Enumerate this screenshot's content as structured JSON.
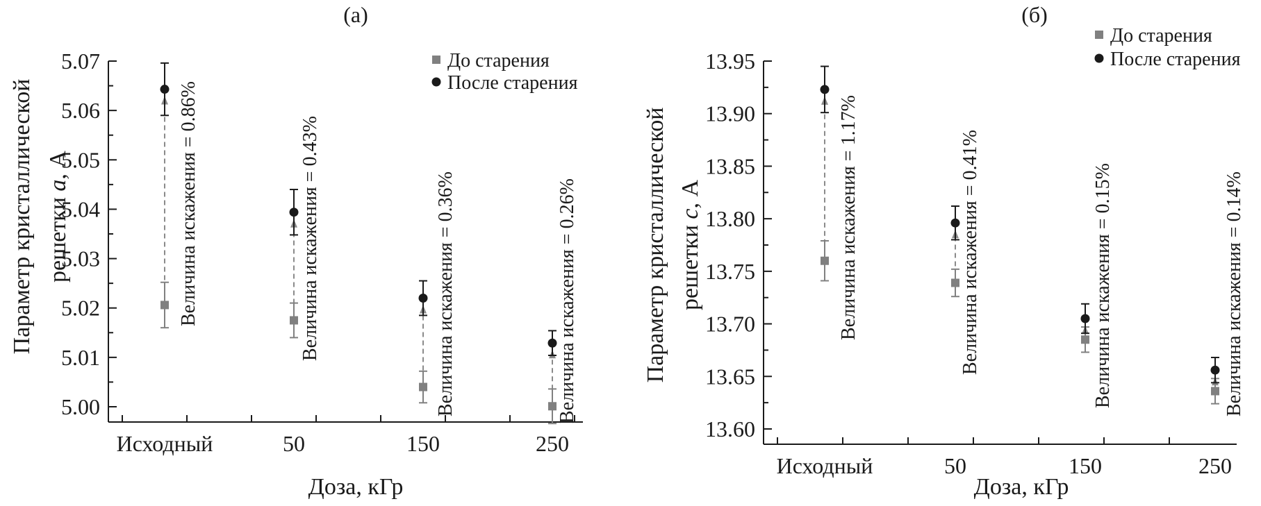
{
  "chart_data": [
    {
      "type": "scatter",
      "panel_label": "(а)",
      "xlabel": "Доза, кГр",
      "ylabel_line1": "Параметр кристаллической",
      "ylabel_line2_pre": "решетки ",
      "ylabel_line2_var": "a",
      "ylabel_line2_post": ", А",
      "categories": [
        "Исходный",
        "50",
        "150",
        "250"
      ],
      "ylim": [
        5.0,
        5.07
      ],
      "yticks": [
        "5.00",
        "5.01",
        "5.02",
        "5.03",
        "5.04",
        "5.05",
        "5.06",
        "5.07"
      ],
      "legend_position": "top-right",
      "series": [
        {
          "name": "До старения",
          "marker": "square",
          "color": "#808080",
          "values": [
            5.0206,
            5.0175,
            5.004,
            5.0001
          ],
          "errors": [
            0.0046,
            0.0035,
            0.0032,
            0.0035
          ]
        },
        {
          "name": "После старения",
          "marker": "circle",
          "color": "#1a1a1a",
          "values": [
            5.0643,
            5.0394,
            5.022,
            5.0129
          ],
          "errors": [
            0.0053,
            0.0046,
            0.0035,
            0.0025
          ]
        }
      ],
      "annotations": [
        "Величина искажения = 0.86%",
        "Величина искажения = 0.43%",
        "Величина искажения = 0.36%",
        "Величина искажения = 0.26%"
      ]
    },
    {
      "type": "scatter",
      "panel_label": "(б)",
      "xlabel": "Доза, кГр",
      "ylabel_line1": "Параметр кристаллической",
      "ylabel_line2_pre": "решетки ",
      "ylabel_line2_var": "c",
      "ylabel_line2_post": ", А",
      "categories": [
        "Исходный",
        "50",
        "150",
        "250"
      ],
      "ylim": [
        13.6,
        13.95
      ],
      "yticks": [
        "13.60",
        "13.65",
        "13.70",
        "13.75",
        "13.80",
        "13.85",
        "13.90",
        "13.95"
      ],
      "legend_position": "top-right",
      "series": [
        {
          "name": "До старения",
          "marker": "square",
          "color": "#808080",
          "values": [
            13.76,
            13.739,
            13.685,
            13.636
          ],
          "errors": [
            0.019,
            0.013,
            0.012,
            0.012
          ]
        },
        {
          "name": "После старения",
          "marker": "circle",
          "color": "#1a1a1a",
          "values": [
            13.923,
            13.796,
            13.705,
            13.656
          ],
          "errors": [
            0.022,
            0.016,
            0.014,
            0.012
          ]
        }
      ],
      "annotations": [
        "Величина искажения = 1.17%",
        "Величина искажения = 0.41%",
        "Величина искажения = 0.15%",
        "Величина искажения = 0.14%"
      ]
    }
  ]
}
